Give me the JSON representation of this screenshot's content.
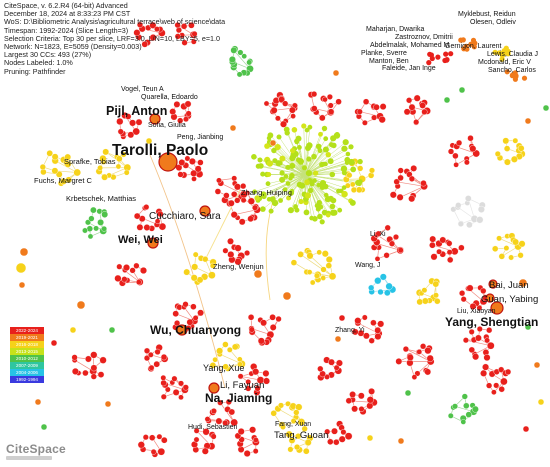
{
  "header": {
    "lines": [
      "CiteSpace, v. 6.2.R4 (64-bit) Advanced",
      "December 18, 2024 at 8:33:23 PM CST",
      "WoS: D:\\Bibliometric Analysis\\agricultural terrace\\web of science\\data",
      "Timespan: 1992-2024 (Slice Length=3)",
      "Selection Criteria: Top 30 per slice, LRF=3.0, L/N=10, LBY=5, e=1.0",
      "Network: N=1823, E=5059 (Density=0.003)",
      "Largest 30 CCs: 493 (27%)",
      "Nodes Labeled: 1.0%",
      "Pruning: Pathfinder"
    ]
  },
  "legend": {
    "items": [
      {
        "label": "2022-2024",
        "color": "#e8201c"
      },
      {
        "label": "2019-2021",
        "color": "#f07a1c"
      },
      {
        "label": "2016-2018",
        "color": "#f6d21a"
      },
      {
        "label": "2013-2015",
        "color": "#c6e21a"
      },
      {
        "label": "2010-2012",
        "color": "#4fc24a"
      },
      {
        "label": "2007-2009",
        "color": "#2fc6a0"
      },
      {
        "label": "2004-2006",
        "color": "#27c3e6"
      },
      {
        "label": "1992-1994",
        "color": "#3a3adf"
      }
    ]
  },
  "authors": [
    {
      "name": "Tarolli, Paolo",
      "major": true
    },
    {
      "name": "Pijl, Anton",
      "major": true
    },
    {
      "name": "Yang, Shengtian",
      "major": true
    },
    {
      "name": "Wu, Chuanyong",
      "major": true
    },
    {
      "name": "Na, Jiaming",
      "major": true
    },
    {
      "name": "Wei, Wei",
      "major": true
    },
    {
      "name": "Cucchiaro, Sara",
      "major": true
    },
    {
      "name": "Li, Fayuan",
      "major": false
    },
    {
      "name": "Yang, Xue",
      "major": false
    },
    {
      "name": "Tang, Guoan",
      "major": false
    },
    {
      "name": "Fang, Xuan",
      "major": false
    },
    {
      "name": "Hudi, Sebastien",
      "major": false
    },
    {
      "name": "Zhang, Yi",
      "major": false
    },
    {
      "name": "Zheng, Wenjun",
      "major": false
    },
    {
      "name": "Zhang, Huiping",
      "major": false
    },
    {
      "name": "Li, Xi",
      "major": false
    },
    {
      "name": "Wang, J",
      "major": false
    },
    {
      "name": "Bai, Juan",
      "major": false
    },
    {
      "name": "Guan, Yabing",
      "major": false
    },
    {
      "name": "Liu, Xiaoyan",
      "major": false
    },
    {
      "name": "Fuchs, Margret C",
      "major": false
    },
    {
      "name": "Krbetschek, Matthias",
      "major": false
    },
    {
      "name": "Sprafke, Tobias",
      "major": false
    },
    {
      "name": "Peng, Jianbing",
      "major": false
    },
    {
      "name": "Sofia, Giulia",
      "major": false
    },
    {
      "name": "Vogel, Teun A",
      "major": false
    },
    {
      "name": "Quarella, Edoardo",
      "major": false
    },
    {
      "name": "Myklebust, Reidun",
      "major": false
    },
    {
      "name": "Olesen, Odleiv",
      "major": false
    },
    {
      "name": "Maharjan, Dwarika",
      "major": false
    },
    {
      "name": "Zastroznov, Dmitrii",
      "major": false
    },
    {
      "name": "Abdelmalak, Mohamed M",
      "major": false
    },
    {
      "name": "Gernigon, Laurent",
      "major": false
    },
    {
      "name": "Planke, Sverre",
      "major": false
    },
    {
      "name": "Lewis, Claudia J",
      "major": false
    },
    {
      "name": "Manton, Ben",
      "major": false
    },
    {
      "name": "Mcdonald, Eric V",
      "major": false
    },
    {
      "name": "Faleide, Jan Inge",
      "major": false
    },
    {
      "name": "Sancho, Carlos",
      "major": false
    }
  ],
  "logo": {
    "text": "CiteSpace"
  }
}
